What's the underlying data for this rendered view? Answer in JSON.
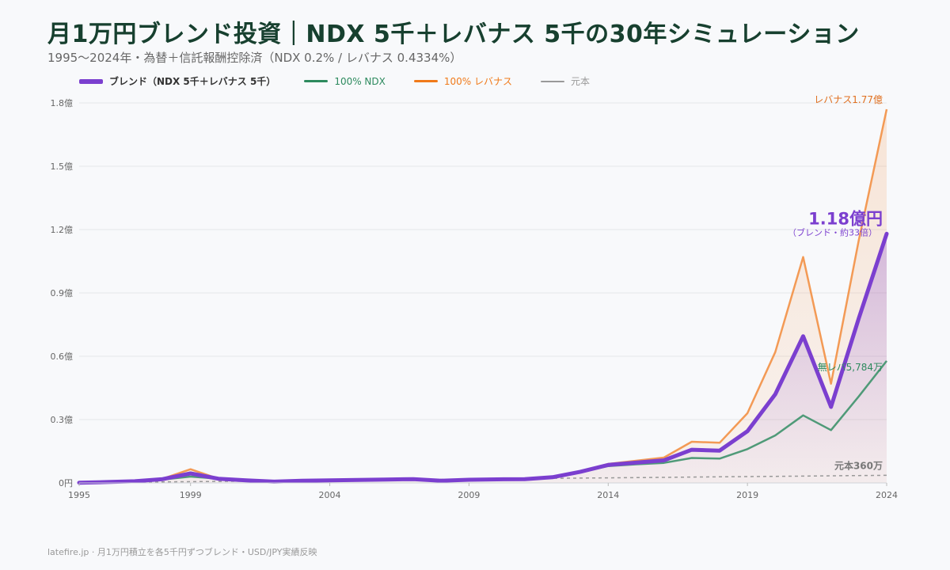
{
  "header": {
    "title": "月1万円ブレンド投資｜NDX 5千＋レバナス 5千の30年シミュレーション",
    "subtitle": "1995〜2024年・為替＋信託報酬控除済（NDX 0.2% / レバナス 0.4334%）"
  },
  "footer": {
    "text": "latefire.jp · 月1万円積立を各5千円ずつブレンド・USD/JPY実績反映"
  },
  "colors": {
    "blend": "#7b3fcf",
    "ndx": "#4f9a78",
    "levanasu": "#f39a55",
    "principal": "#999999",
    "grid": "#e4e6ea"
  },
  "chart_data": {
    "type": "line",
    "x": [
      1995,
      1996,
      1997,
      1998,
      1999,
      2000,
      2001,
      2002,
      2003,
      2004,
      2005,
      2006,
      2007,
      2008,
      2009,
      2010,
      2011,
      2012,
      2013,
      2014,
      2015,
      2016,
      2017,
      2018,
      2019,
      2020,
      2021,
      2022,
      2023,
      2024
    ],
    "xticks": [
      1995,
      1999,
      2004,
      2009,
      2014,
      2019,
      2024
    ],
    "ylim": [
      0,
      1.8
    ],
    "yticks": [
      {
        "value": 0,
        "label": "0円"
      },
      {
        "value": 0.3,
        "label": "0.3億"
      },
      {
        "value": 0.6,
        "label": "0.6億"
      },
      {
        "value": 0.9,
        "label": "0.9億"
      },
      {
        "value": 1.2,
        "label": "1.2億"
      },
      {
        "value": 1.5,
        "label": "1.5億"
      },
      {
        "value": 1.8,
        "label": "1.8億"
      }
    ],
    "unit": "億円",
    "series": [
      {
        "key": "levanasu",
        "name": "100% レバナス",
        "values": [
          0.001,
          0.004,
          0.008,
          0.02,
          0.065,
          0.02,
          0.01,
          0.005,
          0.008,
          0.01,
          0.012,
          0.014,
          0.016,
          0.008,
          0.012,
          0.014,
          0.015,
          0.025,
          0.055,
          0.09,
          0.105,
          0.12,
          0.195,
          0.19,
          0.33,
          0.62,
          1.07,
          0.47,
          1.15,
          1.77
        ]
      },
      {
        "key": "ndx",
        "name": "100% NDX",
        "values": [
          0.001,
          0.004,
          0.008,
          0.016,
          0.03,
          0.02,
          0.013,
          0.008,
          0.011,
          0.013,
          0.015,
          0.017,
          0.02,
          0.012,
          0.017,
          0.019,
          0.02,
          0.028,
          0.05,
          0.08,
          0.088,
          0.095,
          0.118,
          0.115,
          0.16,
          0.225,
          0.32,
          0.25,
          0.41,
          0.578
        ]
      },
      {
        "key": "blend",
        "name": "ブレンド（NDX 5千＋レバナス 5千）",
        "values": [
          0.001,
          0.004,
          0.008,
          0.018,
          0.045,
          0.02,
          0.012,
          0.006,
          0.01,
          0.012,
          0.014,
          0.016,
          0.018,
          0.01,
          0.015,
          0.017,
          0.018,
          0.027,
          0.053,
          0.085,
          0.096,
          0.107,
          0.157,
          0.153,
          0.245,
          0.42,
          0.695,
          0.36,
          0.78,
          1.18
        ]
      },
      {
        "key": "principal",
        "name": "元本",
        "values": [
          0.0012,
          0.0024,
          0.0036,
          0.0048,
          0.006,
          0.0072,
          0.0084,
          0.0096,
          0.0108,
          0.012,
          0.0132,
          0.0144,
          0.0156,
          0.0168,
          0.018,
          0.0192,
          0.0204,
          0.0216,
          0.0228,
          0.024,
          0.0252,
          0.0264,
          0.0276,
          0.0288,
          0.03,
          0.0312,
          0.0324,
          0.0336,
          0.0348,
          0.036
        ]
      }
    ],
    "annotations": {
      "levanasu_end": "レバナス1.77億",
      "blend_end": "1.18億円",
      "blend_end_sub": "（ブレンド・約33倍）",
      "ndx_end": "無レバ5,784万",
      "principal_end": "元本360万"
    }
  }
}
